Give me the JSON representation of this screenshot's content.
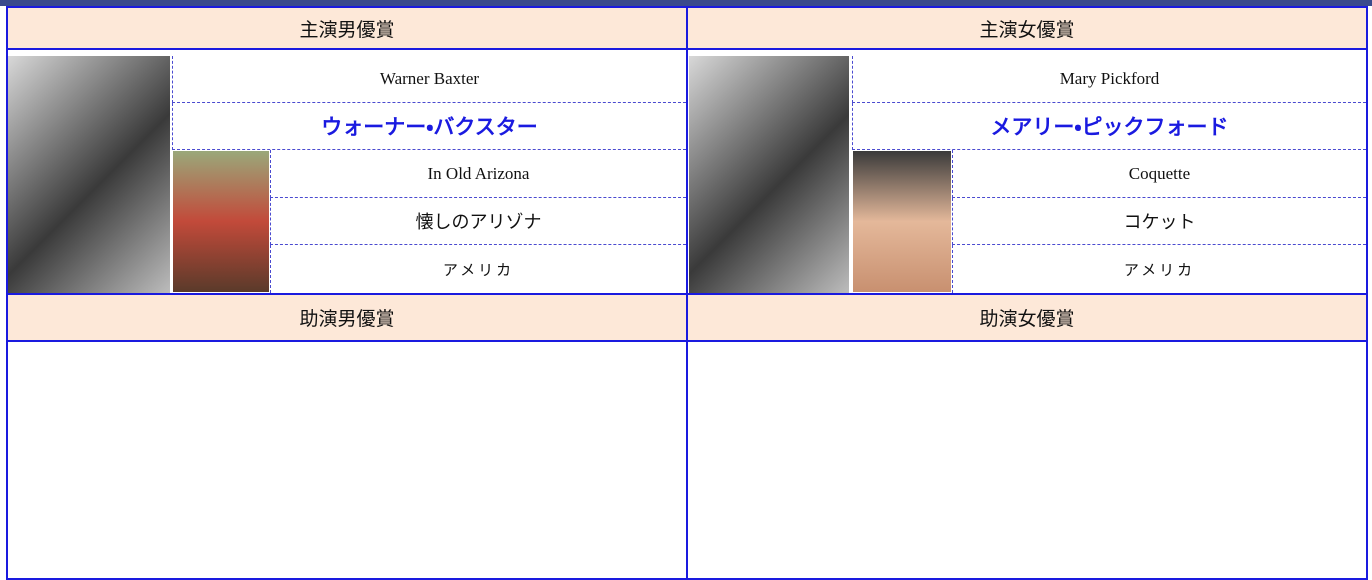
{
  "awards": [
    {
      "category": "主演男優賞",
      "name_en": "Warner Baxter",
      "name_ja": "ウォーナー・バクスター",
      "film_en": "In Old Arizona",
      "film_ja": "懐しのアリゾナ",
      "country": "アメリカ"
    },
    {
      "category": "主演女優賞",
      "name_en": "Mary Pickford",
      "name_ja": "メアリー・ピックフォード",
      "film_en": "Coquette",
      "film_ja": "コケット",
      "country": "アメリカ"
    }
  ],
  "supporting": [
    "助演男優賞",
    "助演女優賞"
  ]
}
